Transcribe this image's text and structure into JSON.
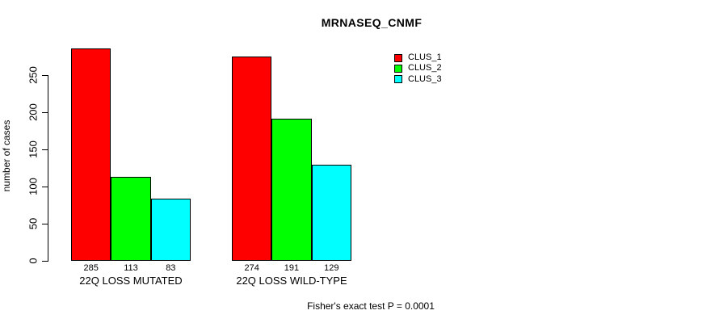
{
  "chart_data": {
    "type": "bar",
    "title": "MRNASEQ_CNMF",
    "ylabel": "number of cases",
    "xlabel": "",
    "categories": [
      "22Q LOSS MUTATED",
      "22Q LOSS WILD-TYPE"
    ],
    "series": [
      {
        "name": "CLUS_1",
        "color": "#ff0000",
        "values": [
          285,
          274
        ]
      },
      {
        "name": "CLUS_2",
        "color": "#00ff00",
        "values": [
          113,
          191
        ]
      },
      {
        "name": "CLUS_3",
        "color": "#00ffff",
        "values": [
          83,
          129
        ]
      }
    ],
    "yticks": [
      0,
      50,
      100,
      150,
      200,
      250
    ],
    "ylim": [
      0,
      290
    ],
    "grid": false,
    "legend_position": "top-right",
    "bar_labels_shown": true,
    "annotation": "Fisher's exact test P = 0.0001",
    "colors": {
      "background": "#ffffff",
      "axis": "#000000",
      "text": "#000000"
    }
  }
}
